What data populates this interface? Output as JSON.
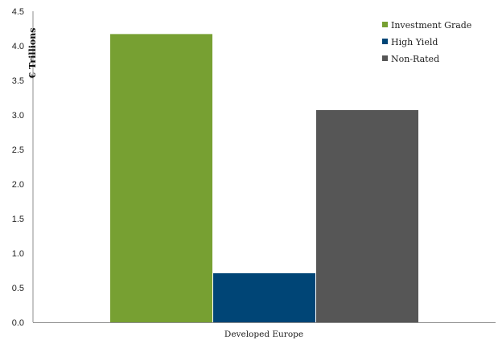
{
  "chart_data": {
    "type": "bar",
    "categories": [
      "Developed Europe"
    ],
    "series": [
      {
        "name": "Investment Grade",
        "values": [
          4.17
        ],
        "color": "#77a032"
      },
      {
        "name": "High Yield",
        "values": [
          0.71
        ],
        "color": "#004576"
      },
      {
        "name": "Non-Rated",
        "values": [
          3.07
        ],
        "color": "#565656"
      }
    ],
    "ylabel": "€ Trillions",
    "ylim": [
      0,
      4.5
    ],
    "yticks": [
      "0.0",
      "0.5",
      "1.0",
      "1.5",
      "2.0",
      "2.5",
      "3.0",
      "3.5",
      "4.0",
      "4.5"
    ],
    "grid": false,
    "legend": "top-right"
  }
}
